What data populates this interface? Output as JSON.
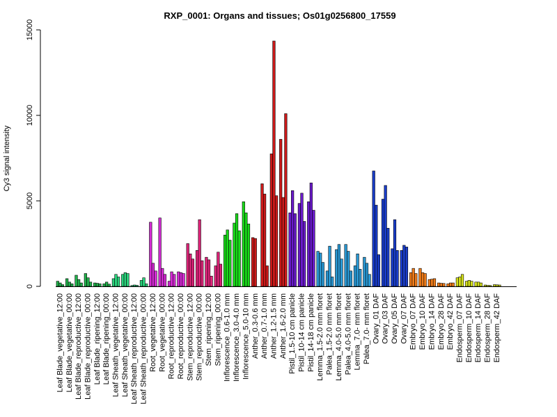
{
  "chart_data": {
    "type": "bar",
    "title": "RXP_0001: Organs and tissues; Os01g0256800_17559",
    "xlabel": "",
    "ylabel": "Cy3 signal intensity",
    "ylim": [
      0,
      15000
    ],
    "yticks": [
      0,
      5000,
      10000,
      15000
    ],
    "grid": false,
    "groups": [
      {
        "label": "Leaf Blade_vegetative_12:00",
        "color": "#22b14c",
        "values": [
          300,
          200,
          100
        ]
      },
      {
        "label": "Leaf Blade_vegetative_00:00",
        "color": "#22b14c",
        "values": [
          450,
          250,
          150
        ]
      },
      {
        "label": "Leaf Blade_reproductive_12:00",
        "color": "#22b14c",
        "values": [
          650,
          400,
          200
        ]
      },
      {
        "label": "Leaf Blade_reproductive_00:00",
        "color": "#22b14c",
        "values": [
          750,
          500,
          250
        ]
      },
      {
        "label": "Leaf Blade_ripening_12:00",
        "color": "#22b14c",
        "values": [
          200,
          180,
          150
        ]
      },
      {
        "label": "Leaf Blade_ripening_00:00",
        "color": "#22b14c",
        "values": [
          150,
          250,
          130
        ]
      },
      {
        "label": "Leaf Sheath_vegetative_12:00",
        "color": "#2ad27c",
        "values": [
          450,
          700,
          550
        ]
      },
      {
        "label": "Leaf Sheath_vegetative_00:00",
        "color": "#2ad27c",
        "values": [
          700,
          800,
          750
        ]
      },
      {
        "label": "Leaf Sheath_reproductive_12:00",
        "color": "#2ad27c",
        "values": [
          50,
          80,
          60
        ]
      },
      {
        "label": "Leaf Sheath_reproductive_00:00",
        "color": "#2ad27c",
        "values": [
          350,
          500,
          150
        ]
      },
      {
        "label": "Root_vegetative_12:00",
        "color": "#d62bd6",
        "values": [
          3750,
          1350,
          900
        ]
      },
      {
        "label": "Root_vegetative_00:00",
        "color": "#d62bd6",
        "values": [
          4000,
          1050,
          700
        ]
      },
      {
        "label": "Root_reproductive_12:00",
        "color": "#d62bd6",
        "values": [
          300,
          850,
          700
        ]
      },
      {
        "label": "Root_reproductive_00:00",
        "color": "#d62bd6",
        "values": [
          850,
          800,
          750
        ]
      },
      {
        "label": "Stem_reproductive_12:00",
        "color": "#e0247a",
        "values": [
          2500,
          1900,
          1600
        ]
      },
      {
        "label": "Stem_reproductive_00:00",
        "color": "#e0247a",
        "values": [
          2100,
          3900,
          1500
        ]
      },
      {
        "label": "Stem_ripening_12:00",
        "color": "#e0247a",
        "values": [
          1700,
          1550,
          600
        ]
      },
      {
        "label": "Stem_ripening_00:00",
        "color": "#e0247a",
        "values": [
          1200,
          2000,
          1300
        ]
      },
      {
        "label": "Inflorescence_0.6-1.0 mm",
        "color": "#1adb1a",
        "values": [
          3000,
          3300,
          2700
        ]
      },
      {
        "label": "Inflorescence_3.0-4.0 mm",
        "color": "#1adb1a",
        "values": [
          3700,
          4250,
          3250
        ]
      },
      {
        "label": "Inflorescence_5.0-10 mm",
        "color": "#1adb1a",
        "values": [
          4950,
          4300,
          3650
        ]
      },
      {
        "label": "Anther_0.3-0.6 mm",
        "color": "#cc1a1a",
        "values": [
          2850,
          2800
        ]
      },
      {
        "label": "Anther_0.7-1.0 mm",
        "color": "#cc1a1a",
        "values": [
          6000,
          5400,
          1200
        ]
      },
      {
        "label": "Anther_1.2-1.5 mm",
        "color": "#cc1a1a",
        "values": [
          7750,
          14350,
          5300
        ]
      },
      {
        "label": "Anther_1.6-2.0 mm",
        "color": "#cc1a1a",
        "values": [
          8600,
          5200,
          10100
        ]
      },
      {
        "label": "Pistil_1.5-10 cm panicle",
        "color": "#6a1acc",
        "values": [
          4300,
          5600,
          4250
        ]
      },
      {
        "label": "Pistil_10-14 cm panicle",
        "color": "#6a1acc",
        "values": [
          4850,
          5450,
          3800
        ]
      },
      {
        "label": "Pistil_14-18 cm panicle",
        "color": "#6a1acc",
        "values": [
          4950,
          6050,
          4450
        ]
      },
      {
        "label": "Lemma_1.5-2.0 mm floret",
        "color": "#2a9ad6",
        "values": [
          2050,
          1950,
          1400
        ]
      },
      {
        "label": "Palea_1.5-2.0 mm floret",
        "color": "#2a9ad6",
        "values": [
          900,
          2350,
          550
        ]
      },
      {
        "label": "Lemma_4.0-5.0 mm floret",
        "color": "#2a9ad6",
        "values": [
          2150,
          2450,
          1600
        ]
      },
      {
        "label": "Palea_4.0-5.0 mm floret",
        "color": "#2a9ad6",
        "values": [
          2450,
          2050,
          900
        ]
      },
      {
        "label": "Lemma_7.0- mm floret",
        "color": "#2a9ad6",
        "values": [
          1200,
          1900,
          1000
        ]
      },
      {
        "label": "Palea_7.0- mm floret",
        "color": "#2a9ad6",
        "values": [
          1700,
          1350,
          700
        ]
      },
      {
        "label": "Ovary_01 DAF",
        "color": "#1a3ecc",
        "values": [
          6750,
          4750,
          1850
        ]
      },
      {
        "label": "Ovary_03 DAF",
        "color": "#1a3ecc",
        "values": [
          5100,
          5900,
          3400
        ]
      },
      {
        "label": "Ovary_05 DAF",
        "color": "#1a3ecc",
        "values": [
          2200,
          3900,
          2100
        ]
      },
      {
        "label": "Ovary_07 DAF",
        "color": "#1a3ecc",
        "values": [
          2100,
          2400,
          2300
        ]
      },
      {
        "label": "Embryo_07 DAF",
        "color": "#f07c1a",
        "values": [
          800,
          1050,
          750
        ]
      },
      {
        "label": "Embryo_10 DAF",
        "color": "#f07c1a",
        "values": [
          1050,
          800,
          750
        ]
      },
      {
        "label": "Embryo_14 DAF",
        "color": "#f07c1a",
        "values": [
          400,
          420,
          450
        ]
      },
      {
        "label": "Embryo_28 DAF",
        "color": "#f07c1a",
        "values": [
          200,
          180,
          170
        ]
      },
      {
        "label": "Embryo_42 DAF",
        "color": "#f07c1a",
        "values": [
          150,
          200,
          200
        ]
      },
      {
        "label": "Endosperm_07 DAF",
        "color": "#d4e01a",
        "values": [
          500,
          550,
          700
        ]
      },
      {
        "label": "Endosperm_10 DAF",
        "color": "#d4e01a",
        "values": [
          300,
          350,
          300
        ]
      },
      {
        "label": "Endosperm_14 DAF",
        "color": "#d4e01a",
        "values": [
          250,
          250,
          200
        ]
      },
      {
        "label": "Endosperm_28 DAF",
        "color": "#d4e01a",
        "values": [
          80,
          60,
          50
        ]
      },
      {
        "label": "Endosperm_42 DAF",
        "color": "#d4e01a",
        "values": [
          100,
          90,
          80
        ]
      }
    ]
  }
}
